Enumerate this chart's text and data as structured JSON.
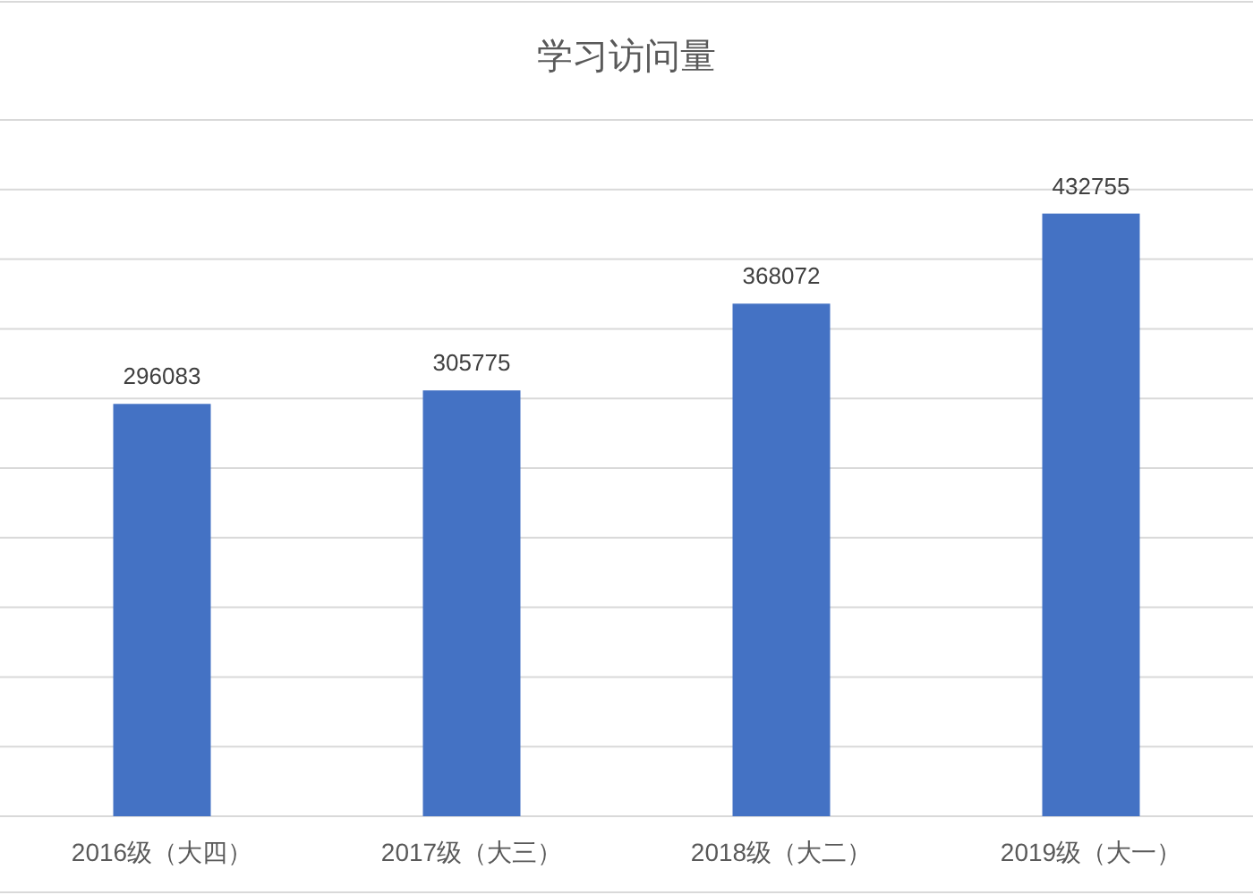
{
  "chart_data": {
    "type": "bar",
    "title": "学习访问量",
    "categories": [
      "2016级（大四）",
      "2017级（大三）",
      "2018级（大二）",
      "2019级（大一）"
    ],
    "values": [
      296083,
      305775,
      368072,
      432755
    ],
    "color": "#4472c4",
    "ylim": [
      0,
      500000
    ],
    "yticks": [
      {
        "value": 0,
        "label": null
      },
      {
        "value": 50000,
        "label": null
      },
      {
        "value": 100000,
        "label": null
      },
      {
        "value": 150000,
        "label": null
      },
      {
        "value": 200000,
        "label": null
      },
      {
        "value": 250000,
        "label": null
      },
      {
        "value": 300000,
        "label": null
      },
      {
        "value": 350000,
        "label": null
      },
      {
        "value": 400000,
        "label": null
      },
      {
        "value": 450000,
        "label": null
      },
      {
        "value": 500000,
        "label": null
      }
    ],
    "grid": "y",
    "tick_labels": "x",
    "data_labels": true
  }
}
